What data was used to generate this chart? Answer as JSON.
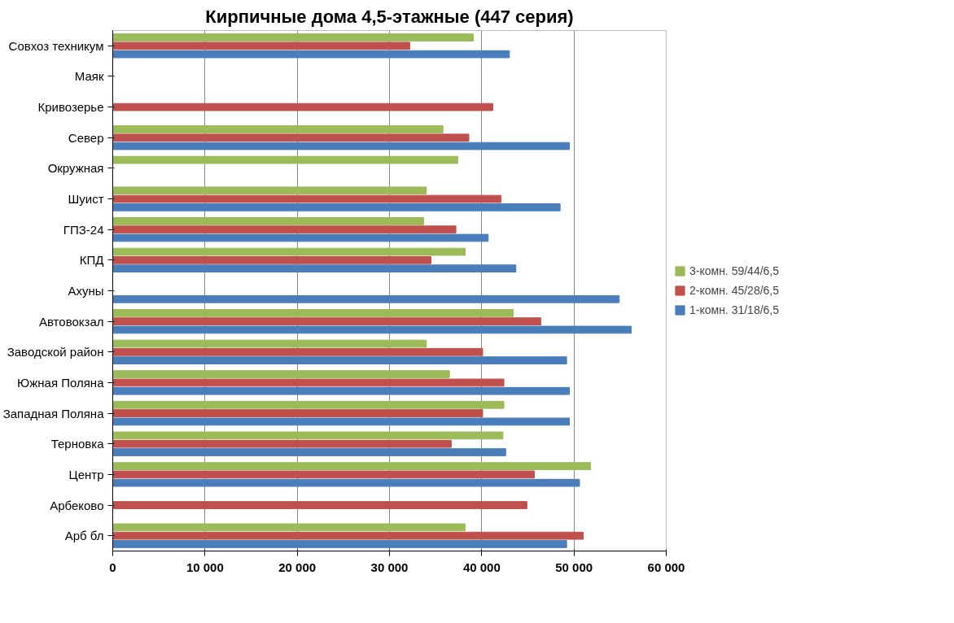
{
  "chart_data": {
    "type": "bar",
    "orientation": "horizontal",
    "title": "Кирпичные дома 4,5-этажные (447 серия)",
    "categories": [
      "Совхоз техникум",
      "Маяк",
      "Кривозерье",
      "Север",
      "Окружная",
      "Шуист",
      "ГПЗ-24",
      "КПД",
      "Ахуны",
      "Автовокзал",
      "Заводской район",
      "Южная Поляна",
      "Западная Поляна",
      "Терновка",
      "Центр",
      "Арбеково",
      "Арб бл"
    ],
    "series": [
      {
        "name": "1-комн. 31/18/6,5",
        "color": "#4a7ebb",
        "values": [
          43000,
          null,
          null,
          49500,
          null,
          48500,
          40700,
          43700,
          54900,
          56200,
          49200,
          49500,
          49500,
          42600,
          50600,
          null,
          49200
        ]
      },
      {
        "name": "2-комн. 45/28/6,5",
        "color": "#c0504d",
        "values": [
          32200,
          null,
          41200,
          38600,
          null,
          42100,
          37200,
          34500,
          null,
          46400,
          40100,
          42400,
          40100,
          36700,
          45700,
          44900,
          51000
        ]
      },
      {
        "name": "3-комн. 59/44/6,5",
        "color": "#9bbb59",
        "values": [
          39100,
          null,
          null,
          35800,
          37400,
          34000,
          33700,
          38200,
          null,
          43400,
          34000,
          36500,
          42400,
          42300,
          51800,
          null,
          38200
        ]
      }
    ],
    "xlim": [
      0,
      60000
    ],
    "xticks": [
      0,
      {
        "value": 10000,
        "label": "10 000"
      },
      {
        "value": 20000,
        "label": "20 000"
      },
      {
        "value": 30000,
        "label": "30 000"
      },
      {
        "value": 40000,
        "label": "40 000"
      },
      {
        "value": 50000,
        "label": "50 000"
      },
      {
        "value": 60000,
        "label": "60 000"
      }
    ],
    "grid": "x",
    "legend": "right"
  }
}
